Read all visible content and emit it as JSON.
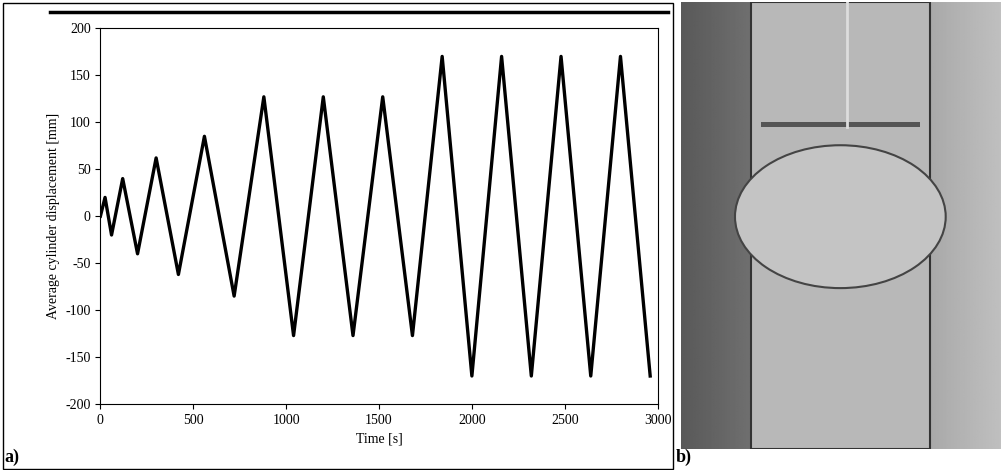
{
  "chart_data": {
    "type": "line",
    "x_label": "Time [s]",
    "y_label": "Average cylinder displacement [mm]",
    "x": [
      0,
      25,
      60,
      120,
      200,
      300,
      420,
      560,
      720,
      880,
      1040,
      1200,
      1360,
      1520,
      1680,
      1840,
      2000,
      2160,
      2320,
      2480,
      2640,
      2800,
      2960
    ],
    "values": [
      0,
      20,
      -20,
      40,
      -40,
      62,
      -62,
      85,
      -85,
      127,
      -127,
      127,
      -127,
      127,
      -127,
      170,
      -170,
      170,
      -170,
      170,
      -170,
      170,
      -170
    ],
    "color": "#000000",
    "xlim": [
      0,
      3000
    ],
    "xticks": [
      0,
      500,
      1000,
      1500,
      2000,
      2500,
      3000
    ],
    "ylim": [
      -200,
      200
    ],
    "yticks": [
      -200,
      -150,
      -100,
      -50,
      0,
      50,
      100,
      150,
      200
    ],
    "grid": false
  },
  "panel_labels": [
    "a)",
    "b)"
  ]
}
